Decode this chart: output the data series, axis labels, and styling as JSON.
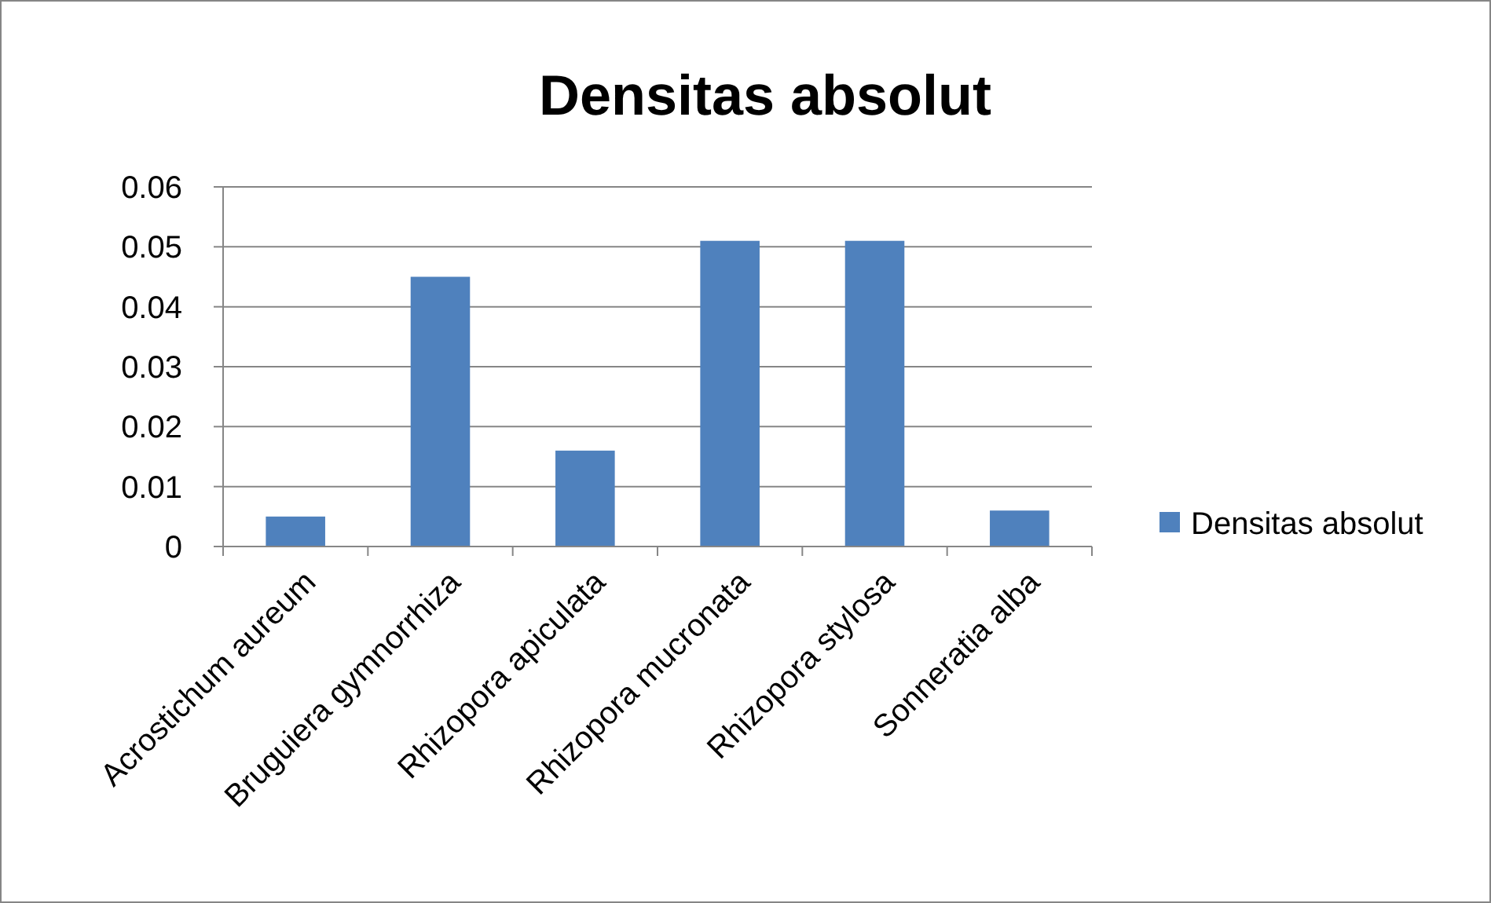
{
  "chart_data": {
    "type": "bar",
    "title": "Densitas absolut",
    "categories": [
      "Acrostichum aureum",
      "Bruguiera gymnorrhiza",
      "Rhizopora apiculata",
      "Rhizopora mucronata",
      "Rhizopora stylosa",
      "Sonneratia alba"
    ],
    "series": [
      {
        "name": "Densitas absolut",
        "color": "#4f81bd",
        "values": [
          0.005,
          0.045,
          0.016,
          0.051,
          0.051,
          0.006
        ]
      }
    ],
    "ylim": [
      0,
      0.06
    ],
    "yticks": [
      0,
      0.01,
      0.02,
      0.03,
      0.04,
      0.05,
      0.06
    ],
    "grid": "y",
    "legend": "right"
  }
}
